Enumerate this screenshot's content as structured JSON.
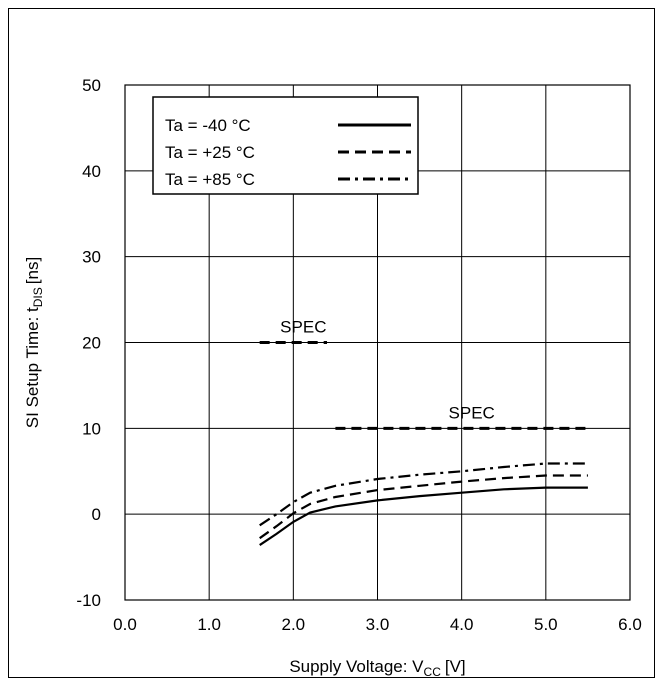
{
  "chart_data": {
    "type": "line",
    "title": "",
    "xlabel": "Supply Voltage: V",
    "xlabel_sub": "CC",
    "xlabel_unit": "[V]",
    "ylabel": "SI Setup Time: t",
    "ylabel_sub": "DIS",
    "ylabel_unit": "[ns]",
    "xlim": [
      0.0,
      6.0
    ],
    "ylim": [
      -10,
      50
    ],
    "x_ticks": [
      "0.0",
      "1.0",
      "2.0",
      "3.0",
      "4.0",
      "5.0",
      "6.0"
    ],
    "y_ticks": [
      "-10",
      "0",
      "10",
      "20",
      "30",
      "40",
      "50"
    ],
    "grid": true,
    "legend_position": "top-left",
    "series": [
      {
        "name": "Ta = -40 °C",
        "style": "solid",
        "x": [
          1.6,
          1.8,
          2.0,
          2.2,
          2.5,
          3.0,
          3.5,
          4.0,
          4.5,
          5.0,
          5.5
        ],
        "y": [
          -3.6,
          -2.3,
          -0.9,
          0.2,
          0.9,
          1.6,
          2.1,
          2.5,
          2.9,
          3.1,
          3.1
        ]
      },
      {
        "name": "Ta = +25 °C",
        "style": "dashed",
        "x": [
          1.6,
          1.8,
          2.0,
          2.2,
          2.5,
          3.0,
          3.5,
          4.0,
          4.5,
          5.0,
          5.5
        ],
        "y": [
          -2.8,
          -1.4,
          0.1,
          1.2,
          2.0,
          2.8,
          3.3,
          3.8,
          4.2,
          4.5,
          4.5
        ]
      },
      {
        "name": "Ta = +85 °C",
        "style": "dashdot",
        "x": [
          1.6,
          1.8,
          2.0,
          2.2,
          2.5,
          3.0,
          3.5,
          4.0,
          4.5,
          5.0,
          5.5
        ],
        "y": [
          -1.3,
          0.0,
          1.4,
          2.5,
          3.3,
          4.1,
          4.6,
          5.0,
          5.5,
          5.9,
          5.9
        ]
      }
    ],
    "annotations": [
      {
        "text": "SPEC",
        "x_range": [
          1.6,
          2.4
        ],
        "y": 20
      },
      {
        "text": "SPEC",
        "x_range": [
          2.5,
          5.5
        ],
        "y": 10
      }
    ]
  }
}
